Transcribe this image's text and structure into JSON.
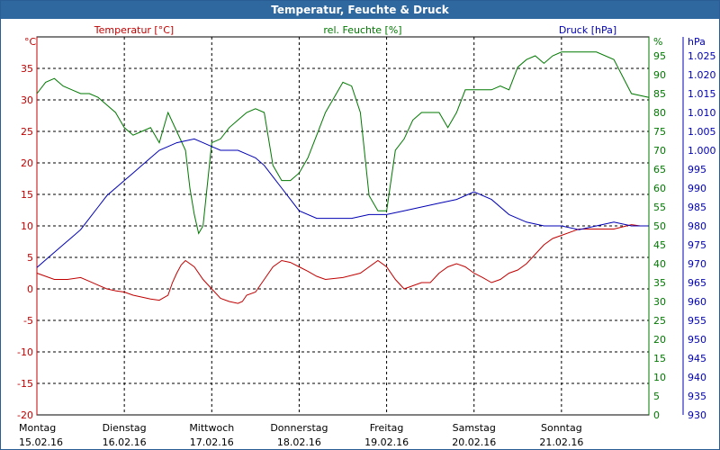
{
  "window": {
    "title": "Temperatur, Feuchte & Druck"
  },
  "colors": {
    "temperature": "#c00000",
    "humidity": "#007800",
    "pressure": "#0000b4",
    "grid": "#000000",
    "title_bg": "#2f689f"
  },
  "legend": {
    "temperature": "Temperatur [°C]",
    "humidity": "rel. Feuchte [%]",
    "pressure": "Druck [hPa]"
  },
  "axes": {
    "left_unit": "°C",
    "right1_unit": "%",
    "right2_unit": "hPa"
  },
  "chart_data": {
    "type": "line",
    "title": "Temperatur, Feuchte & Druck",
    "x_days": [
      {
        "day": "Montag",
        "date": "15.02.16"
      },
      {
        "day": "Dienstag",
        "date": "16.02.16"
      },
      {
        "day": "Mittwoch",
        "date": "17.02.16"
      },
      {
        "day": "Donnerstag",
        "date": "18.02.16"
      },
      {
        "day": "Freitag",
        "date": "19.02.16"
      },
      {
        "day": "Samstag",
        "date": "20.02.16"
      },
      {
        "day": "Sonntag",
        "date": "21.02.16"
      }
    ],
    "x_range_days": [
      0,
      7
    ],
    "grid": true,
    "axes": {
      "temperature": {
        "range": [
          -20,
          40
        ],
        "ticks": [
          "-20",
          "-15",
          "-10",
          "-5",
          "0",
          "5",
          "10",
          "15",
          "20",
          "25",
          "30",
          "35"
        ]
      },
      "humidity": {
        "range": [
          0,
          100
        ],
        "ticks": [
          "0",
          "5",
          "10",
          "15",
          "20",
          "25",
          "30",
          "35",
          "40",
          "45",
          "50",
          "55",
          "60",
          "65",
          "70",
          "75",
          "80",
          "85",
          "90",
          "95"
        ]
      },
      "pressure": {
        "range": [
          930,
          1030
        ],
        "ticks": [
          "930",
          "935",
          "940",
          "945",
          "950",
          "955",
          "960",
          "965",
          "970",
          "975",
          "980",
          "985",
          "990",
          "995",
          "1.000",
          "1.005",
          "1.010",
          "1.015",
          "1.020",
          "1.025"
        ]
      }
    },
    "series": [
      {
        "name": "Temperatur [°C]",
        "axis": "temperature",
        "x": [
          0,
          0.1,
          0.2,
          0.35,
          0.5,
          0.6,
          0.7,
          0.8,
          0.9,
          1.0,
          1.1,
          1.2,
          1.3,
          1.4,
          1.5,
          1.55,
          1.6,
          1.65,
          1.7,
          1.8,
          1.9,
          2.0,
          2.1,
          2.2,
          2.3,
          2.35,
          2.4,
          2.5,
          2.6,
          2.7,
          2.8,
          2.9,
          3.0,
          3.1,
          3.2,
          3.3,
          3.5,
          3.7,
          3.9,
          4.0,
          4.1,
          4.2,
          4.3,
          4.4,
          4.5,
          4.6,
          4.7,
          4.8,
          4.9,
          5.0,
          5.1,
          5.2,
          5.3,
          5.4,
          5.5,
          5.6,
          5.7,
          5.8,
          5.9,
          6.0,
          6.2,
          6.4,
          6.6,
          6.8,
          6.9,
          7.0
        ],
        "values": [
          2.5,
          2.0,
          1.5,
          1.5,
          1.8,
          1.2,
          0.6,
          0,
          -0.3,
          -0.5,
          -1.0,
          -1.3,
          -1.6,
          -1.8,
          -1.0,
          1.0,
          2.5,
          3.8,
          4.5,
          3.5,
          1.5,
          0,
          -1.5,
          -2.0,
          -2.3,
          -2.0,
          -1.0,
          -0.5,
          1.5,
          3.5,
          4.5,
          4.2,
          3.5,
          2.8,
          2.0,
          1.5,
          1.8,
          2.5,
          4.5,
          3.5,
          1.5,
          0,
          0.5,
          1.0,
          1.0,
          2.5,
          3.5,
          4.0,
          3.5,
          2.5,
          1.8,
          1.0,
          1.5,
          2.5,
          3.0,
          4.0,
          5.5,
          7.0,
          8.0,
          8.5,
          9.5,
          9.5,
          9.5,
          10.2,
          10.0,
          10.0
        ]
      },
      {
        "name": "rel. Feuchte [%]",
        "axis": "humidity",
        "x": [
          0,
          0.1,
          0.2,
          0.3,
          0.4,
          0.5,
          0.6,
          0.7,
          0.8,
          0.9,
          1.0,
          1.1,
          1.2,
          1.3,
          1.4,
          1.5,
          1.6,
          1.7,
          1.75,
          1.8,
          1.85,
          1.9,
          2.0,
          2.1,
          2.2,
          2.3,
          2.4,
          2.5,
          2.6,
          2.7,
          2.8,
          2.9,
          3.0,
          3.1,
          3.2,
          3.3,
          3.4,
          3.5,
          3.6,
          3.7,
          3.8,
          3.9,
          4.0,
          4.1,
          4.2,
          4.3,
          4.4,
          4.5,
          4.6,
          4.7,
          4.8,
          4.9,
          5.0,
          5.1,
          5.2,
          5.3,
          5.4,
          5.5,
          5.6,
          5.7,
          5.8,
          5.9,
          6.0,
          6.2,
          6.4,
          6.6,
          6.8,
          7.0
        ],
        "values": [
          85,
          88,
          89,
          87,
          86,
          85,
          85,
          84,
          82,
          80,
          76,
          74,
          75,
          76,
          72,
          80,
          75,
          70,
          60,
          53,
          48,
          50,
          72,
          73,
          76,
          78,
          80,
          81,
          80,
          66,
          62,
          62,
          64,
          68,
          74,
          80,
          84,
          88,
          87,
          80,
          58,
          54,
          54,
          70,
          73,
          78,
          80,
          80,
          80,
          76,
          80,
          86,
          86,
          86,
          86,
          87,
          86,
          92,
          94,
          95,
          93,
          95,
          96,
          96,
          96,
          94,
          85,
          84
        ]
      },
      {
        "name": "Druck [hPa]",
        "axis": "pressure",
        "x": [
          0,
          0.1,
          0.2,
          0.3,
          0.4,
          0.5,
          0.6,
          0.7,
          0.8,
          0.9,
          1.0,
          1.1,
          1.2,
          1.3,
          1.4,
          1.5,
          1.6,
          1.7,
          1.8,
          1.9,
          2.0,
          2.1,
          2.2,
          2.3,
          2.4,
          2.5,
          2.6,
          2.7,
          2.8,
          2.9,
          3.0,
          3.2,
          3.4,
          3.6,
          3.8,
          4.0,
          4.2,
          4.4,
          4.6,
          4.8,
          5.0,
          5.2,
          5.4,
          5.6,
          5.8,
          6.0,
          6.2,
          6.4,
          6.6,
          6.8,
          7.0
        ],
        "values": [
          969,
          971,
          973,
          975,
          977,
          979,
          982,
          985,
          988,
          990,
          992,
          994,
          996,
          998,
          1000,
          1001,
          1002,
          1002.5,
          1003,
          1002,
          1001,
          1000,
          1000,
          1000,
          999,
          998,
          996,
          993,
          990,
          987,
          984,
          982,
          982,
          982,
          983,
          983,
          984,
          985,
          986,
          987,
          989,
          987,
          983,
          981,
          980,
          980,
          979,
          980,
          981,
          980,
          980
        ]
      }
    ]
  }
}
